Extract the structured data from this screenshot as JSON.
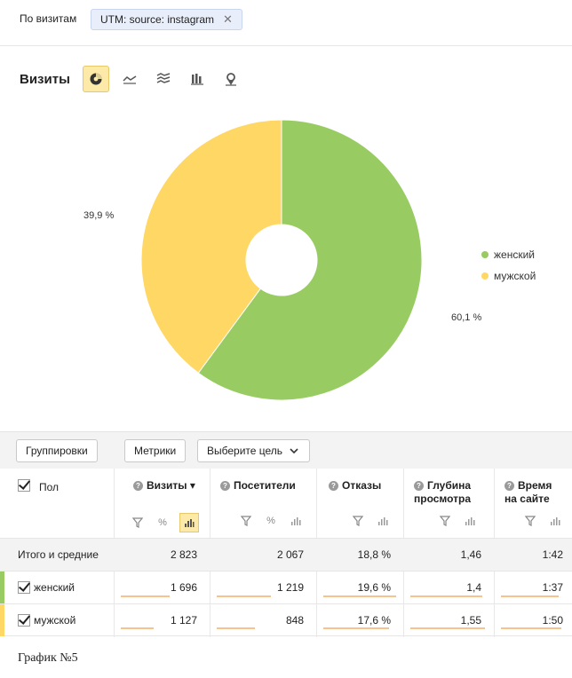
{
  "filter": {
    "label": "По визитам",
    "chip": "UTM: source: instagram",
    "chip_close": "✕"
  },
  "chart_header": {
    "title": "Визиты",
    "view_types": [
      "pie-chart-icon",
      "line-chart-icon",
      "area-chart-icon",
      "bar-chart-icon",
      "map-icon"
    ]
  },
  "chart_data": {
    "type": "pie",
    "slices": [
      {
        "label": "женский",
        "value": 60.1,
        "display": "60,1 %",
        "color": "#98cc62"
      },
      {
        "label": "мужской",
        "value": 39.9,
        "display": "39,9 %",
        "color": "#ffd765"
      }
    ],
    "donut": true,
    "legend_position": "right"
  },
  "toolbar": {
    "groupings": "Группировки",
    "metrics": "Метрики",
    "goal": "Выберите цель"
  },
  "table": {
    "dimension_header": "Пол",
    "columns": [
      {
        "label": "Визиты",
        "sort": "▾"
      },
      {
        "label": "Посетители"
      },
      {
        "label": "Отказы"
      },
      {
        "label": "Глубина просмотра"
      },
      {
        "label": "Время на сайте"
      }
    ],
    "pct_symbol": "%",
    "total": {
      "name": "Итого и средние",
      "values": [
        "2 823",
        "2 067",
        "18,8 %",
        "1,46",
        "1:42"
      ]
    },
    "rows": [
      {
        "name": "женский",
        "color": "#98cc62",
        "values": [
          "1 696",
          "1 219",
          "19,6 %",
          "1,4",
          "1:37"
        ],
        "fill": [
          0.6,
          0.59,
          1.0,
          0.96,
          0.96
        ]
      },
      {
        "name": "мужской",
        "color": "#ffd765",
        "values": [
          "1 127",
          "848",
          "17,6 %",
          "1,55",
          "1:50"
        ],
        "fill": [
          0.4,
          0.41,
          0.9,
          1.0,
          1.0
        ]
      }
    ]
  },
  "caption": "График №5"
}
